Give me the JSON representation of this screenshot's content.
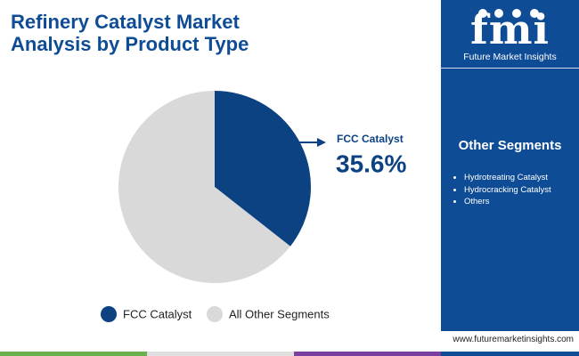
{
  "chart_data": {
    "type": "pie",
    "title": "Refinery Catalyst Market Analysis by Product Type",
    "categories": [
      "FCC Catalyst",
      "All Other Segments"
    ],
    "values": [
      35.6,
      64.4
    ],
    "value_labels": [
      "35.6%",
      null
    ],
    "colors": [
      "#0c4282",
      "#d9d9d9"
    ]
  },
  "sidebar": {
    "logo": "fmi",
    "brand": "Future Market Insights",
    "heading": "Other Segments",
    "items": [
      "Hydrotreating Catalyst",
      "Hydrocracking Catalyst",
      "Others"
    ]
  },
  "footer": {
    "url": "www.futuremarketinsights.com"
  }
}
